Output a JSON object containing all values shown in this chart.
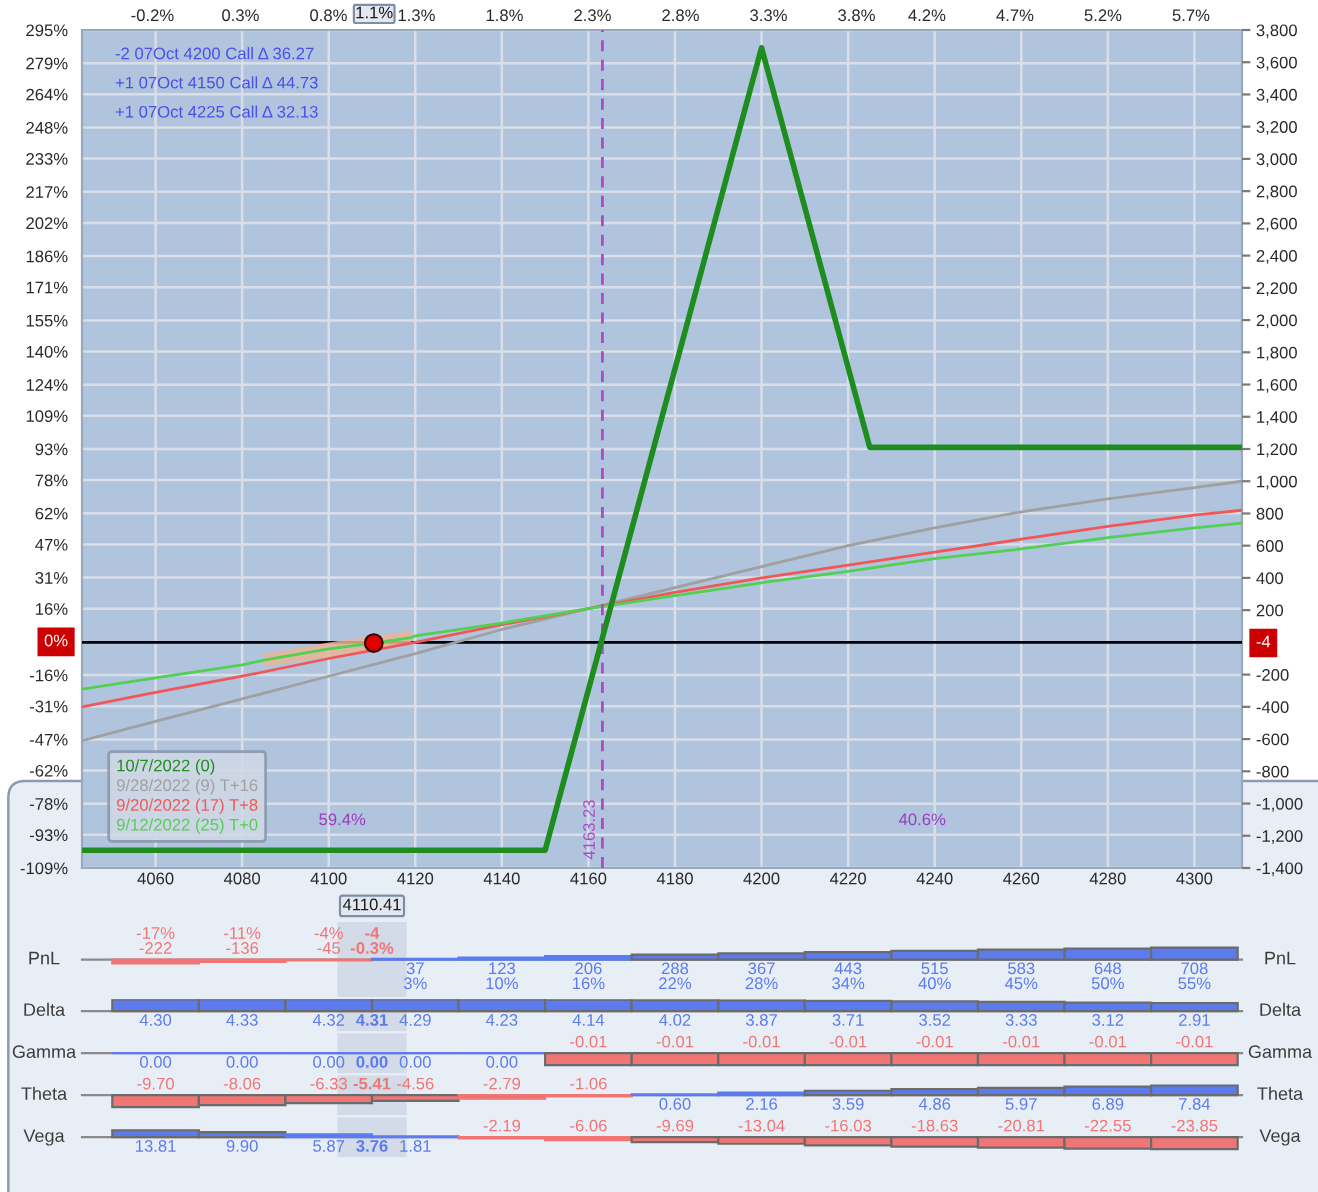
{
  "chart_data": [
    {
      "type": "line",
      "xlim": [
        4043,
        4311
      ],
      "xticks": [
        4060,
        4080,
        4100,
        4120,
        4140,
        4160,
        4180,
        4200,
        4220,
        4240,
        4260,
        4280,
        4300
      ],
      "x2lim": [
        -0.6,
        5.99
      ],
      "x2ticks": [
        {
          "value": -0.2,
          "label": "-0.2%"
        },
        {
          "value": 0.3,
          "label": "0.3%"
        },
        {
          "value": 0.8,
          "label": "0.8%"
        },
        {
          "value": 1.06,
          "label": "1.1%"
        },
        {
          "value": 1.3,
          "label": "1.3%"
        },
        {
          "value": 1.8,
          "label": "1.8%"
        },
        {
          "value": 2.3,
          "label": "2.3%"
        },
        {
          "value": 2.8,
          "label": "2.8%"
        },
        {
          "value": 3.3,
          "label": "3.3%"
        },
        {
          "value": 3.8,
          "label": "3.8%"
        },
        {
          "value": 4.2,
          "label": "4.2%"
        },
        {
          "value": 4.7,
          "label": "4.7%"
        },
        {
          "value": 5.2,
          "label": "5.2%"
        },
        {
          "value": 5.7,
          "label": "5.7%"
        }
      ],
      "ylim": [
        -109,
        295
      ],
      "yticks": [
        {
          "value": 295,
          "label": "295%"
        },
        {
          "value": 279,
          "label": "279%"
        },
        {
          "value": 264,
          "label": "264%"
        },
        {
          "value": 248,
          "label": "248%"
        },
        {
          "value": 233,
          "label": "233%"
        },
        {
          "value": 217,
          "label": "217%"
        },
        {
          "value": 202,
          "label": "202%"
        },
        {
          "value": 186,
          "label": "186%"
        },
        {
          "value": 171,
          "label": "171%"
        },
        {
          "value": 155,
          "label": "155%"
        },
        {
          "value": 140,
          "label": "140%"
        },
        {
          "value": 124,
          "label": "124%"
        },
        {
          "value": 109,
          "label": "109%"
        },
        {
          "value": 93,
          "label": "93%"
        },
        {
          "value": 78,
          "label": "78%"
        },
        {
          "value": 62,
          "label": "62%"
        },
        {
          "value": 47,
          "label": "47%"
        },
        {
          "value": 31,
          "label": "31%"
        },
        {
          "value": 16,
          "label": "16%"
        },
        {
          "value": 0,
          "label": "0%"
        },
        {
          "value": -16,
          "label": "-16%"
        },
        {
          "value": -31,
          "label": "-31%"
        },
        {
          "value": -47,
          "label": "-47%"
        },
        {
          "value": -62,
          "label": "-62%"
        },
        {
          "value": -78,
          "label": "-78%"
        },
        {
          "value": -93,
          "label": "-93%"
        },
        {
          "value": -109,
          "label": "-109%"
        }
      ],
      "y2lim": [
        -1400,
        3800
      ],
      "y2ticks": [
        {
          "value": 3800,
          "label": "3,800"
        },
        {
          "value": 3600,
          "label": "3,600"
        },
        {
          "value": 3400,
          "label": "3,400"
        },
        {
          "value": 3200,
          "label": "3,200"
        },
        {
          "value": 3000,
          "label": "3,000"
        },
        {
          "value": 2800,
          "label": "2,800"
        },
        {
          "value": 2600,
          "label": "2,600"
        },
        {
          "value": 2400,
          "label": "2,400"
        },
        {
          "value": 2200,
          "label": "2,200"
        },
        {
          "value": 2000,
          "label": "2,000"
        },
        {
          "value": 1800,
          "label": "1,800"
        },
        {
          "value": 1600,
          "label": "1,600"
        },
        {
          "value": 1400,
          "label": "1,400"
        },
        {
          "value": 1200,
          "label": "1,200"
        },
        {
          "value": 1000,
          "label": "1,000"
        },
        800,
        600,
        400,
        200,
        -4,
        -200,
        -400,
        -600,
        -800,
        {
          "value": -1000,
          "label": "-1,000"
        },
        {
          "value": -1200,
          "label": "-1,200"
        },
        {
          "value": -1400,
          "label": "-1,400"
        }
      ],
      "grid": true,
      "legend": "bottom left",
      "series": [
        {
          "name": "10/7/2022 (0)",
          "axis": "y2",
          "color": "#1e8c1e",
          "x": [
            4043,
            4150,
            4200,
            4225,
            4311
          ],
          "values": [
            -1290,
            -1290,
            3690,
            1210,
            1210
          ]
        },
        {
          "name": "9/28/2022 (9) T+16",
          "axis": "y2",
          "color": "#a0a0a0",
          "x": [
            4043,
            4060,
            4080,
            4100,
            4120,
            4140,
            4160,
            4180,
            4200,
            4220,
            4240,
            4260,
            4280,
            4300,
            4311
          ],
          "values": [
            -610,
            -490,
            -350,
            -210,
            -70,
            80,
            210,
            340,
            470,
            600,
            710,
            810,
            890,
            960,
            1000
          ]
        },
        {
          "name": "9/20/2022 (17) T+8",
          "axis": "y2",
          "color": "#f05858",
          "x": [
            4043,
            4060,
            4080,
            4100,
            4120,
            4140,
            4160,
            4180,
            4200,
            4220,
            4240,
            4260,
            4280,
            4300,
            4311
          ],
          "values": [
            -400,
            -310,
            -210,
            -100,
            0,
            110,
            210,
            310,
            400,
            480,
            560,
            640,
            720,
            790,
            820
          ]
        },
        {
          "name": "9/12/2022 (25) T+0",
          "axis": "y2",
          "color": "#52d052",
          "x": [
            4043,
            4060,
            4080,
            4085,
            4100,
            4110.41,
            4119,
            4120,
            4140,
            4160,
            4180,
            4200,
            4220,
            4240,
            4260,
            4280,
            4300,
            4311
          ],
          "values": [
            -290,
            -220,
            -140,
            -110,
            -40,
            -4,
            30,
            40,
            120,
            210,
            290,
            370,
            440,
            520,
            580,
            650,
            710,
            740
          ],
          "lower": [
            null,
            null,
            null,
            -150,
            -90,
            -50,
            -10,
            null,
            null,
            null,
            null,
            null,
            null,
            null,
            null,
            null,
            null,
            null
          ],
          "upper": [
            null,
            null,
            null,
            -70,
            0,
            40,
            70,
            null,
            null,
            null,
            null,
            null,
            null,
            null,
            null,
            null,
            null,
            null
          ]
        },
        {
          "type": "scatter",
          "axis": "y2",
          "color": "#e00000",
          "marker": "circle",
          "x": [
            4110.41
          ],
          "values": [
            -4
          ]
        }
      ],
      "ref_lines": [
        {
          "axis": "x",
          "value": 4163.23,
          "label": "4163.23",
          "color": "#b048c8",
          "line_style": "dashed"
        },
        {
          "axis": "y2",
          "value": 0,
          "color": "#000000"
        }
      ],
      "annotations": [
        "59.4%",
        "40.6%"
      ]
    },
    {
      "type": "other",
      "annotations": [
        "-2 07Oct 4200 Call Δ 36.27",
        "+1 07Oct 4150 Call Δ 44.73",
        "+1 07Oct 4225 Call Δ 32.13"
      ]
    },
    {
      "type": "bar",
      "ylabel": "PnL",
      "y2label": "PnL",
      "x": [
        4060,
        4080,
        4100,
        4120,
        4140,
        4160,
        4180,
        4200,
        4220,
        4240,
        4260,
        4280,
        4300
      ],
      "xlim": [
        4043,
        4311
      ],
      "tick_labels": false,
      "values": [
        -222,
        -136,
        -45,
        37,
        123,
        206,
        288,
        367,
        443,
        515,
        583,
        648,
        708
      ],
      "value_labels": [
        "-17%\n-222",
        "-11%\n-136",
        "-4%\n-45",
        "37\n3%",
        "123\n10%",
        "206\n16%",
        "288\n22%",
        "367\n28%",
        "443\n34%",
        "515\n40%",
        "583\n45%",
        "648\n50%",
        "708\n55%"
      ],
      "colors": [
        "#f07575",
        "#f07575",
        "#f07575",
        "#5b7bef",
        "#5b7bef",
        "#5b7bef",
        "#5b7bef",
        "#5b7bef",
        "#5b7bef",
        "#5b7bef",
        "#5b7bef",
        "#5b7bef",
        "#5b7bef"
      ],
      "bands": [
        {
          "axis": "x",
          "from": 4102,
          "to": 4118,
          "color": "#cfd8e5",
          "label": "4110.41"
        }
      ],
      "annotations": [
        "-4\n-0.3%"
      ]
    },
    {
      "type": "bar",
      "ylabel": "Delta",
      "y2label": "Delta",
      "x": [
        4060,
        4080,
        4100,
        4120,
        4140,
        4160,
        4180,
        4200,
        4220,
        4240,
        4260,
        4280,
        4300
      ],
      "xlim": [
        4043,
        4311
      ],
      "tick_labels": false,
      "values": [
        4.3,
        4.33,
        4.32,
        4.29,
        4.23,
        4.14,
        4.02,
        3.87,
        3.71,
        3.52,
        3.33,
        3.12,
        2.91
      ],
      "value_labels": [
        "4.30",
        "4.33",
        "4.32",
        "4.29",
        "4.23",
        "4.14",
        "4.02",
        "3.87",
        "3.71",
        "3.52",
        "3.33",
        "3.12",
        "2.91"
      ],
      "colors": [
        "#5b7bef",
        "#5b7bef",
        "#5b7bef",
        "#5b7bef",
        "#5b7bef",
        "#5b7bef",
        "#5b7bef",
        "#5b7bef",
        "#5b7bef",
        "#5b7bef",
        "#5b7bef",
        "#5b7bef",
        "#5b7bef"
      ],
      "bands": [
        {
          "axis": "x",
          "from": 4102,
          "to": 4118,
          "color": "#cfd8e5"
        }
      ],
      "annotations": [
        "4.31"
      ]
    },
    {
      "type": "bar",
      "ylabel": "Gamma",
      "y2label": "Gamma",
      "x": [
        4060,
        4080,
        4100,
        4120,
        4140,
        4160,
        4180,
        4200,
        4220,
        4240,
        4260,
        4280,
        4300
      ],
      "xlim": [
        4043,
        4311
      ],
      "tick_labels": false,
      "values": [
        0,
        0,
        0,
        0,
        0,
        -0.01,
        -0.01,
        -0.01,
        -0.01,
        -0.01,
        -0.01,
        -0.01,
        -0.01
      ],
      "value_labels": [
        "0.00",
        "0.00",
        "0.00",
        "0.00",
        "0.00",
        "-0.01",
        "-0.01",
        "-0.01",
        "-0.01",
        "-0.01",
        "-0.01",
        "-0.01",
        "-0.01"
      ],
      "colors": [
        "#5b7bef",
        "#5b7bef",
        "#5b7bef",
        "#5b7bef",
        "#5b7bef",
        "#f07575",
        "#f07575",
        "#f07575",
        "#f07575",
        "#f07575",
        "#f07575",
        "#f07575",
        "#f07575"
      ],
      "bands": [
        {
          "axis": "x",
          "from": 4102,
          "to": 4118,
          "color": "#cfd8e5"
        }
      ],
      "annotations": [
        "0.00"
      ]
    },
    {
      "type": "bar",
      "ylabel": "Theta",
      "y2label": "Theta",
      "x": [
        4060,
        4080,
        4100,
        4120,
        4140,
        4160,
        4180,
        4200,
        4220,
        4240,
        4260,
        4280,
        4300
      ],
      "xlim": [
        4043,
        4311
      ],
      "tick_labels": false,
      "values": [
        -9.7,
        -8.06,
        -6.33,
        -4.56,
        -2.79,
        -1.06,
        0.6,
        2.16,
        3.59,
        4.86,
        5.97,
        6.89,
        7.84
      ],
      "value_labels": [
        "-9.70",
        "-8.06",
        "-6.33",
        "-4.56",
        "-2.79",
        "-1.06",
        "0.60",
        "2.16",
        "3.59",
        "4.86",
        "5.97",
        "6.89",
        "7.84"
      ],
      "colors": [
        "#f07575",
        "#f07575",
        "#f07575",
        "#f07575",
        "#f07575",
        "#f07575",
        "#5b7bef",
        "#5b7bef",
        "#5b7bef",
        "#5b7bef",
        "#5b7bef",
        "#5b7bef",
        "#5b7bef"
      ],
      "bands": [
        {
          "axis": "x",
          "from": 4102,
          "to": 4118,
          "color": "#cfd8e5"
        }
      ],
      "annotations": [
        "-5.41"
      ]
    },
    {
      "type": "bar",
      "ylabel": "Vega",
      "y2label": "Vega",
      "x": [
        4060,
        4080,
        4100,
        4120,
        4140,
        4160,
        4180,
        4200,
        4220,
        4240,
        4260,
        4280,
        4300
      ],
      "xlim": [
        4043,
        4311
      ],
      "tick_labels": false,
      "values": [
        13.81,
        9.9,
        5.87,
        1.81,
        -2.19,
        -6.06,
        -9.69,
        -13.04,
        -16.03,
        -18.63,
        -20.81,
        -22.55,
        -23.85
      ],
      "value_labels": [
        "13.81",
        "9.90",
        "5.87",
        "1.81",
        "-2.19",
        "-6.06",
        "-9.69",
        "-13.04",
        "-16.03",
        "-18.63",
        "-20.81",
        "-22.55",
        "-23.85"
      ],
      "colors": [
        "#5b7bef",
        "#5b7bef",
        "#5b7bef",
        "#5b7bef",
        "#f07575",
        "#f07575",
        "#f07575",
        "#f07575",
        "#f07575",
        "#f07575",
        "#f07575",
        "#f07575",
        "#f07575"
      ],
      "bands": [
        {
          "axis": "x",
          "from": 4102,
          "to": 4118,
          "color": "#cfd8e5"
        }
      ],
      "annotations": [
        "3.76"
      ]
    }
  ]
}
